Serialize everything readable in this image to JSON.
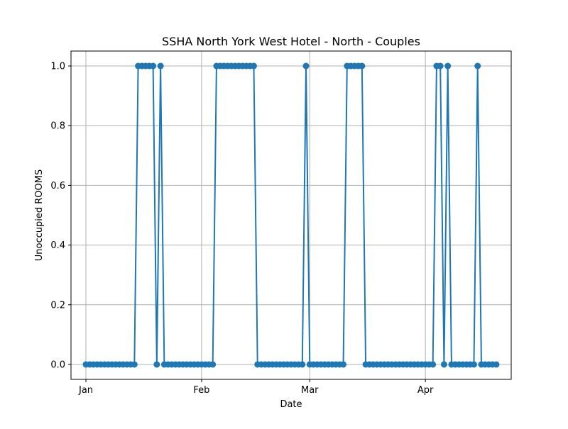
{
  "chart_data": {
    "type": "line",
    "title": "SSHA North York West Hotel - North - Couples",
    "xlabel": "Date",
    "ylabel": "Unoccupied ROOMS",
    "x_ticks": [
      "Jan",
      "Feb",
      "Mar",
      "Apr"
    ],
    "x_tick_dates": [
      "2024-01-01",
      "2024-02-01",
      "2024-03-01",
      "2024-04-01"
    ],
    "y_ticks": [
      "0.0",
      "0.2",
      "0.4",
      "0.6",
      "0.8",
      "1.0"
    ],
    "y_tick_values": [
      0,
      0.2,
      0.4,
      0.6,
      0.8,
      1.0
    ],
    "xlim": [
      "2023-12-28",
      "2024-04-24"
    ],
    "ylim": [
      -0.05,
      1.05
    ],
    "grid": true,
    "colors": {
      "line": "#1f77b4",
      "grid": "#b0b0b0",
      "axes": "#000000"
    },
    "series": [
      {
        "name": "",
        "x": [
          "2024-01-01",
          "2024-01-02",
          "2024-01-03",
          "2024-01-04",
          "2024-01-05",
          "2024-01-06",
          "2024-01-07",
          "2024-01-08",
          "2024-01-09",
          "2024-01-10",
          "2024-01-11",
          "2024-01-12",
          "2024-01-13",
          "2024-01-14",
          "2024-01-15",
          "2024-01-16",
          "2024-01-17",
          "2024-01-18",
          "2024-01-19",
          "2024-01-20",
          "2024-01-21",
          "2024-01-22",
          "2024-01-23",
          "2024-01-24",
          "2024-01-25",
          "2024-01-26",
          "2024-01-27",
          "2024-01-28",
          "2024-01-29",
          "2024-01-30",
          "2024-01-31",
          "2024-02-01",
          "2024-02-02",
          "2024-02-03",
          "2024-02-04",
          "2024-02-05",
          "2024-02-06",
          "2024-02-07",
          "2024-02-08",
          "2024-02-09",
          "2024-02-10",
          "2024-02-11",
          "2024-02-12",
          "2024-02-13",
          "2024-02-14",
          "2024-02-15",
          "2024-02-16",
          "2024-02-17",
          "2024-02-18",
          "2024-02-19",
          "2024-02-20",
          "2024-02-21",
          "2024-02-22",
          "2024-02-23",
          "2024-02-24",
          "2024-02-25",
          "2024-02-26",
          "2024-02-27",
          "2024-02-28",
          "2024-02-29",
          "2024-03-01",
          "2024-03-02",
          "2024-03-03",
          "2024-03-04",
          "2024-03-05",
          "2024-03-06",
          "2024-03-07",
          "2024-03-08",
          "2024-03-09",
          "2024-03-10",
          "2024-03-11",
          "2024-03-12",
          "2024-03-13",
          "2024-03-14",
          "2024-03-15",
          "2024-03-16",
          "2024-03-17",
          "2024-03-18",
          "2024-03-19",
          "2024-03-20",
          "2024-03-21",
          "2024-03-22",
          "2024-03-23",
          "2024-03-24",
          "2024-03-25",
          "2024-03-26",
          "2024-03-27",
          "2024-03-28",
          "2024-03-29",
          "2024-03-30",
          "2024-03-31",
          "2024-04-01",
          "2024-04-02",
          "2024-04-03",
          "2024-04-04",
          "2024-04-05",
          "2024-04-06",
          "2024-04-07",
          "2024-04-08",
          "2024-04-09",
          "2024-04-10",
          "2024-04-11",
          "2024-04-12",
          "2024-04-13",
          "2024-04-14",
          "2024-04-15",
          "2024-04-16",
          "2024-04-17",
          "2024-04-18",
          "2024-04-19",
          "2024-04-20"
        ],
        "y": [
          0,
          0,
          0,
          0,
          0,
          0,
          0,
          0,
          0,
          0,
          0,
          0,
          0,
          0,
          1,
          1,
          1,
          1,
          1,
          0,
          1,
          0,
          0,
          0,
          0,
          0,
          0,
          0,
          0,
          0,
          0,
          0,
          0,
          0,
          0,
          1,
          1,
          1,
          1,
          1,
          1,
          1,
          1,
          1,
          1,
          1,
          0,
          0,
          0,
          0,
          0,
          0,
          0,
          0,
          0,
          0,
          0,
          0,
          0,
          1,
          0,
          0,
          0,
          0,
          0,
          0,
          0,
          0,
          0,
          0,
          1,
          1,
          1,
          1,
          1,
          0,
          0,
          0,
          0,
          0,
          0,
          0,
          0,
          0,
          0,
          0,
          0,
          0,
          0,
          0,
          0,
          0,
          0,
          0,
          1,
          1,
          0,
          1,
          0,
          0,
          0,
          0,
          0,
          0,
          0,
          1,
          0,
          0,
          0,
          0,
          0
        ]
      }
    ]
  }
}
